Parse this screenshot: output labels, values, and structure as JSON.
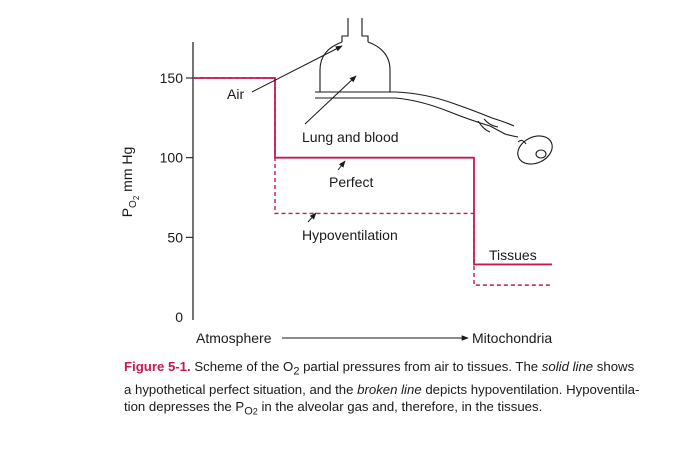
{
  "axis": {
    "ylabel_main": "P",
    "ylabel_sub": "O",
    "ylabel_subsub": "2",
    "ylabel_unit": " mm Hg",
    "ticks": [
      "150",
      "100",
      "50",
      "0"
    ],
    "xlabel_start": "Atmosphere",
    "xlabel_end": "Mitochondria"
  },
  "labels": {
    "air": "Air",
    "lung": "Lung and blood",
    "perfect": "Perfect",
    "hypo": "Hypoventilation",
    "tissues": "Tissues"
  },
  "colors": {
    "solid_line": "#c8194f",
    "broken_line": "#c8194f",
    "figure_label": "#c8194f",
    "ink": "#1a1a1a"
  },
  "chart_data": {
    "type": "line",
    "ylim": [
      0,
      170
    ],
    "yticks": [
      0,
      50,
      100,
      150
    ],
    "series": [
      {
        "style": "solid",
        "values": [
          {
            "stage": "air",
            "po2": 150
          },
          {
            "stage": "lung",
            "po2": 100
          },
          {
            "stage": "tissues",
            "po2": 33
          }
        ]
      },
      {
        "style": "broken",
        "values": [
          {
            "stage": "air",
            "po2": 150
          },
          {
            "stage": "lung",
            "po2": 65
          },
          {
            "stage": "tissues",
            "po2": 20
          }
        ]
      }
    ]
  },
  "caption": {
    "figure_label": "Figure 5-1.",
    "text_1": " Scheme of the O",
    "sub_1": "2",
    "text_2": " partial pressures from air to tissues. The ",
    "solid_line": "solid line",
    "text_3": " shows a hypothetical perfect situation, and the ",
    "broken_line": "broken line",
    "text_4": " depicts hypoventilation. Hypoventila-tion depresses the P",
    "sub_2": "O",
    "sub_3": "2",
    "text_5": " in the alveolar gas and, therefore, in the tissues."
  }
}
